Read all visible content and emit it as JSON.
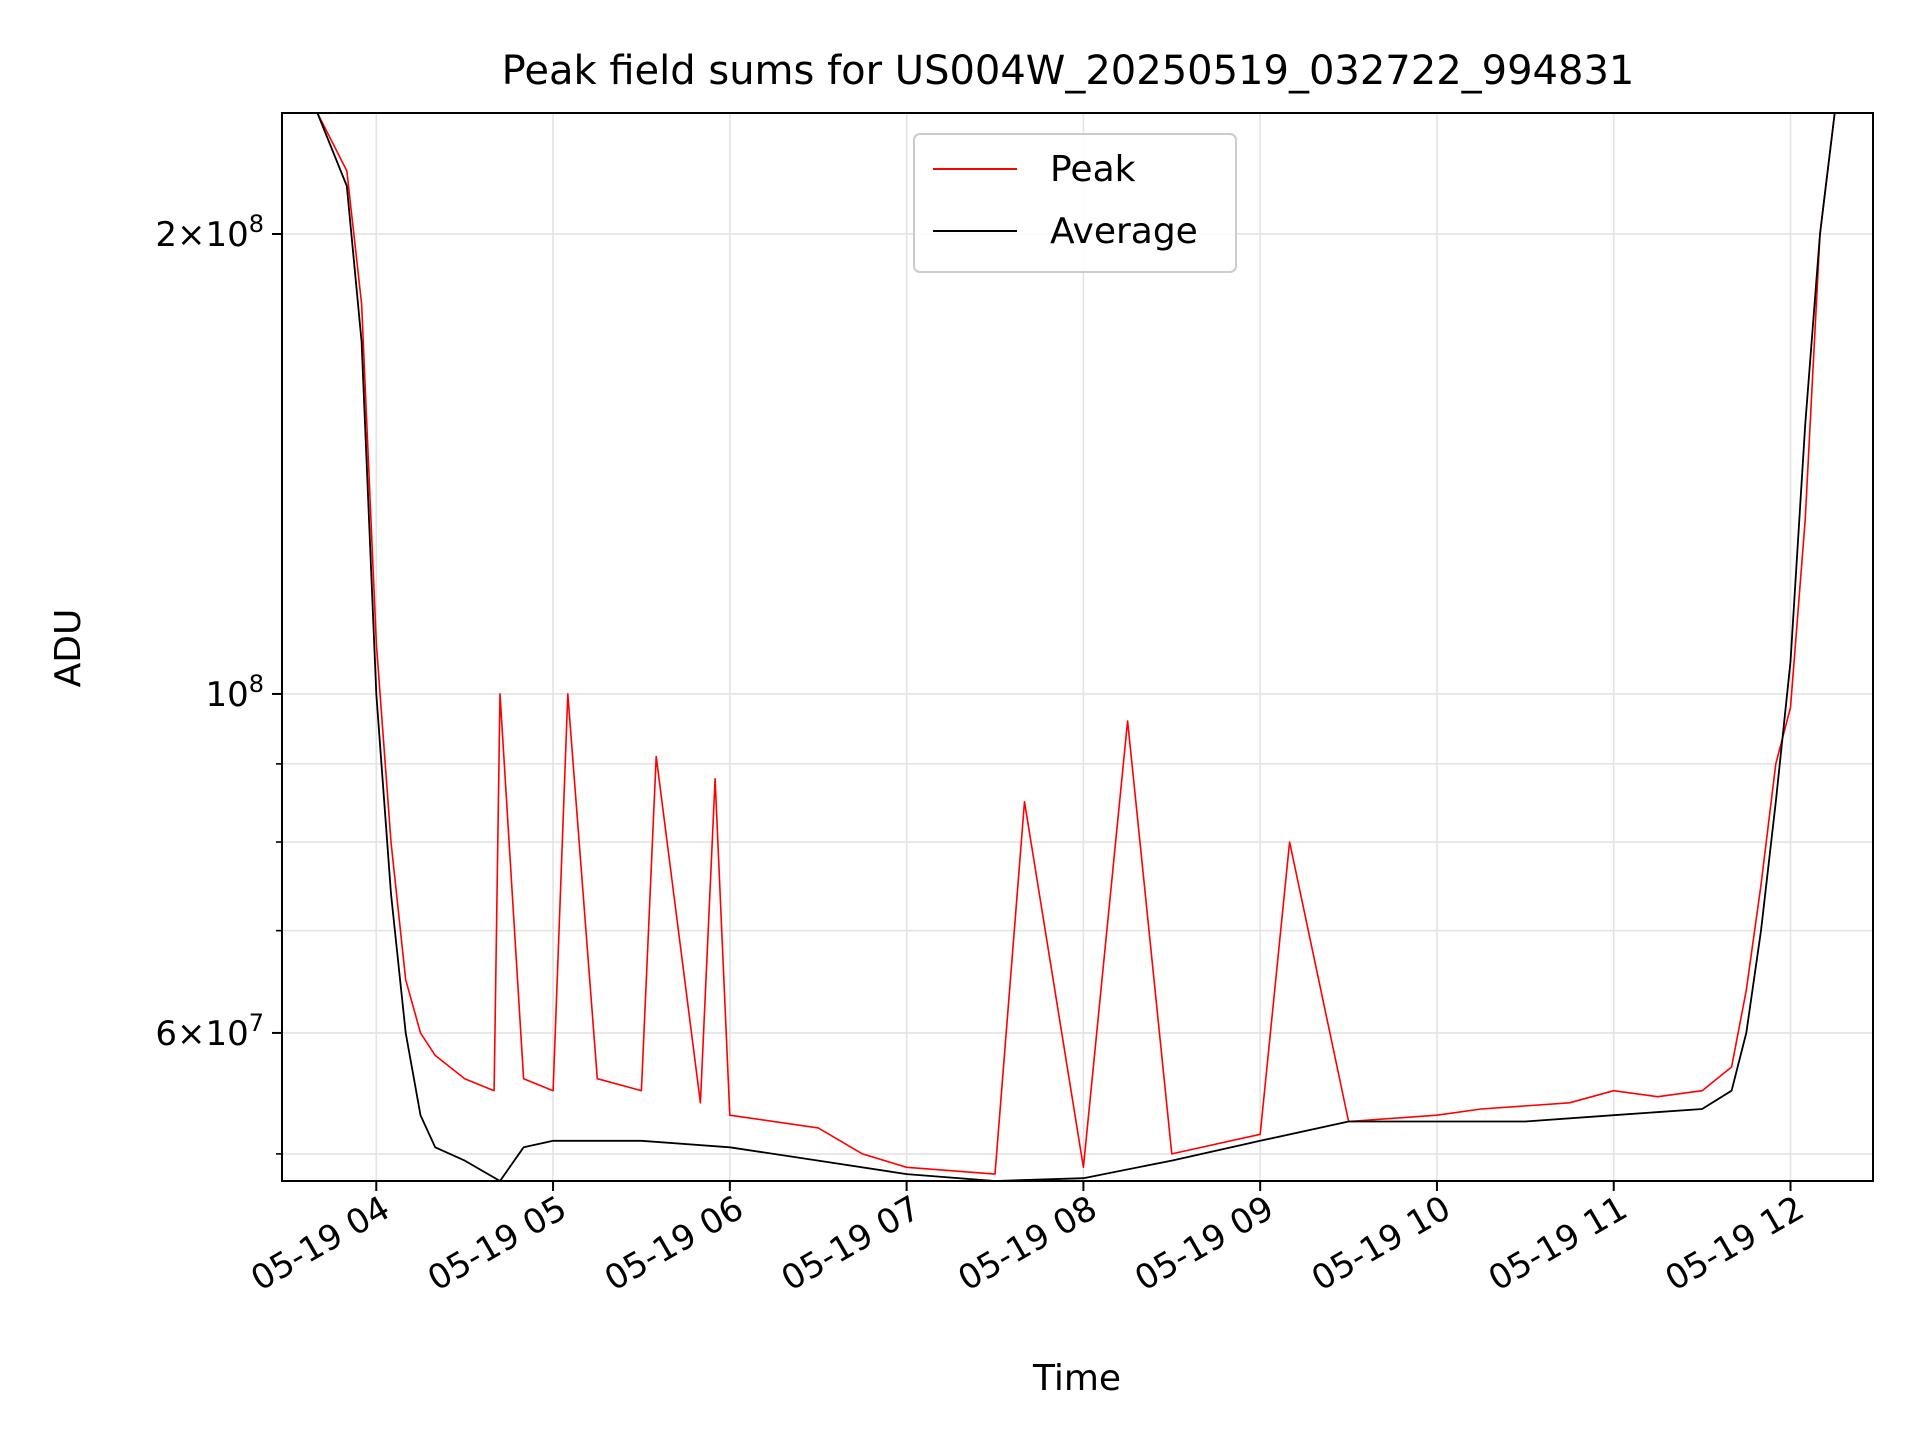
{
  "chart_data": {
    "type": "line",
    "title": "Peak field sums for US004W_20250519_032722_994831",
    "xlabel": "Time",
    "ylabel": "ADU",
    "yscale": "log",
    "xlim": [
      "2025-05-19 03:28",
      "2025-05-19 12:28"
    ],
    "ylim": [
      48000000,
      240000000
    ],
    "grid": true,
    "legend_position": "upper center",
    "x_ticks": [
      {
        "value": "2025-05-19 04:00",
        "label": "05-19 04"
      },
      {
        "value": "2025-05-19 05:00",
        "label": "05-19 05"
      },
      {
        "value": "2025-05-19 06:00",
        "label": "05-19 06"
      },
      {
        "value": "2025-05-19 07:00",
        "label": "05-19 07"
      },
      {
        "value": "2025-05-19 08:00",
        "label": "05-19 08"
      },
      {
        "value": "2025-05-19 09:00",
        "label": "05-19 09"
      },
      {
        "value": "2025-05-19 10:00",
        "label": "05-19 10"
      },
      {
        "value": "2025-05-19 11:00",
        "label": "05-19 11"
      },
      {
        "value": "2025-05-19 12:00",
        "label": "05-19 12"
      }
    ],
    "y_major_ticks": [
      {
        "value": 60000000,
        "mant": "6",
        "exp": "7"
      },
      {
        "value": 100000000,
        "mant": "",
        "exp": "8"
      },
      {
        "value": 200000000,
        "mant": "2",
        "exp": "8"
      }
    ],
    "y_minor_ticks": [
      50000000,
      70000000,
      80000000,
      90000000
    ],
    "series": [
      {
        "name": "Peak",
        "color": "#ff0000",
        "x": [
          "2025-05-19 03:40",
          "2025-05-19 03:50",
          "2025-05-19 03:55",
          "2025-05-19 04:00",
          "2025-05-19 04:05",
          "2025-05-19 04:10",
          "2025-05-19 04:15",
          "2025-05-19 04:20",
          "2025-05-19 04:30",
          "2025-05-19 04:40",
          "2025-05-19 04:42",
          "2025-05-19 04:50",
          "2025-05-19 05:00",
          "2025-05-19 05:05",
          "2025-05-19 05:15",
          "2025-05-19 05:30",
          "2025-05-19 05:35",
          "2025-05-19 05:50",
          "2025-05-19 05:55",
          "2025-05-19 06:00",
          "2025-05-19 06:30",
          "2025-05-19 06:45",
          "2025-05-19 07:00",
          "2025-05-19 07:30",
          "2025-05-19 07:40",
          "2025-05-19 08:00",
          "2025-05-19 08:15",
          "2025-05-19 08:30",
          "2025-05-19 09:00",
          "2025-05-19 09:10",
          "2025-05-19 09:30",
          "2025-05-19 10:00",
          "2025-05-19 10:15",
          "2025-05-19 10:45",
          "2025-05-19 11:00",
          "2025-05-19 11:15",
          "2025-05-19 11:30",
          "2025-05-19 11:40",
          "2025-05-19 11:45",
          "2025-05-19 11:50",
          "2025-05-19 11:55",
          "2025-05-19 12:00",
          "2025-05-19 12:05",
          "2025-05-19 12:10",
          "2025-05-19 12:15"
        ],
        "y": [
          240000000,
          220000000,
          180000000,
          108000000,
          80000000,
          65000000,
          60000000,
          58000000,
          56000000,
          55000000,
          100000000,
          56000000,
          55000000,
          100000000,
          56000000,
          55000000,
          91000000,
          54000000,
          88000000,
          53000000,
          52000000,
          50000000,
          49000000,
          48500000,
          85000000,
          49000000,
          96000000,
          50000000,
          51500000,
          80000000,
          52500000,
          53000000,
          53500000,
          54000000,
          55000000,
          54500000,
          55000000,
          57000000,
          64000000,
          75000000,
          90000000,
          98000000,
          130000000,
          200000000,
          240000000
        ]
      },
      {
        "name": "Average",
        "color": "#000000",
        "x": [
          "2025-05-19 03:40",
          "2025-05-19 03:50",
          "2025-05-19 03:55",
          "2025-05-19 04:00",
          "2025-05-19 04:05",
          "2025-05-19 04:10",
          "2025-05-19 04:15",
          "2025-05-19 04:20",
          "2025-05-19 04:30",
          "2025-05-19 04:42",
          "2025-05-19 04:50",
          "2025-05-19 05:00",
          "2025-05-19 05:30",
          "2025-05-19 06:00",
          "2025-05-19 06:30",
          "2025-05-19 07:00",
          "2025-05-19 07:30",
          "2025-05-19 08:00",
          "2025-05-19 08:30",
          "2025-05-19 09:00",
          "2025-05-19 09:30",
          "2025-05-19 10:00",
          "2025-05-19 10:30",
          "2025-05-19 11:00",
          "2025-05-19 11:30",
          "2025-05-19 11:40",
          "2025-05-19 11:45",
          "2025-05-19 11:50",
          "2025-05-19 11:55",
          "2025-05-19 12:00",
          "2025-05-19 12:05",
          "2025-05-19 12:10",
          "2025-05-19 12:15"
        ],
        "y": [
          240000000,
          215000000,
          170000000,
          100000000,
          74000000,
          60000000,
          53000000,
          50500000,
          49500000,
          48000000,
          50500000,
          51000000,
          51000000,
          50500000,
          49500000,
          48500000,
          48000000,
          48200000,
          49500000,
          51000000,
          52500000,
          52500000,
          52500000,
          53000000,
          53500000,
          55000000,
          60000000,
          70000000,
          85000000,
          105000000,
          150000000,
          200000000,
          240000000
        ]
      }
    ]
  }
}
